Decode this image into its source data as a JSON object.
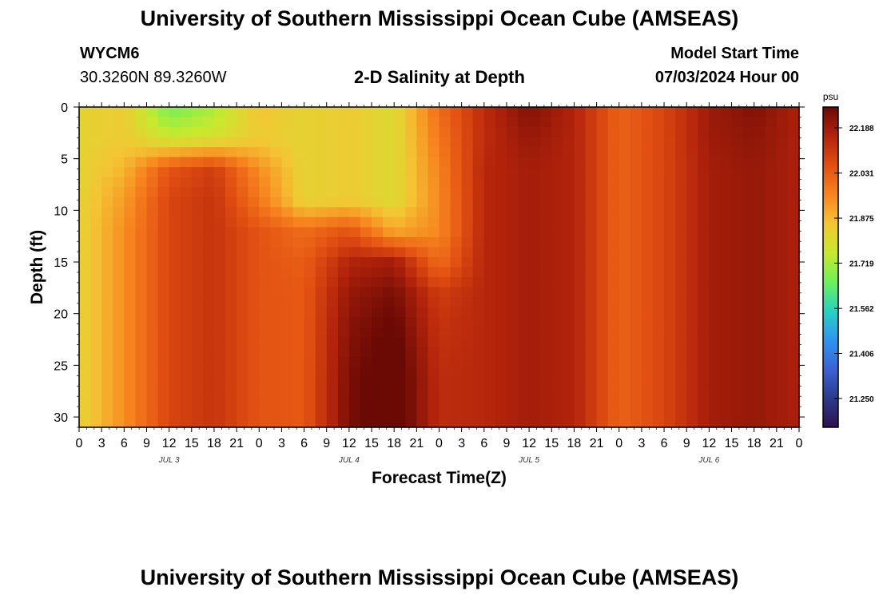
{
  "header": {
    "title": "University of Southern Mississippi Ocean Cube (AMSEAS)",
    "station": "WYCM6",
    "coords": "30.3260N  89.3260W",
    "subtitle": "2-D Salinity at Depth",
    "model_start_label": "Model Start Time",
    "model_start_value": "07/03/2024 Hour 00"
  },
  "footer": {
    "title": "University of Southern Mississippi Ocean Cube (AMSEAS)"
  },
  "chart_data": {
    "type": "heatmap",
    "xlabel": "Forecast Time(Z)",
    "ylabel": "Depth (ft)",
    "x_hours_range": [
      0,
      96
    ],
    "y_range": [
      0,
      31
    ],
    "x_tick_labels": [
      "0",
      "3",
      "6",
      "9",
      "12",
      "15",
      "18",
      "21",
      "0",
      "3",
      "6",
      "9",
      "12",
      "15",
      "18",
      "21",
      "0",
      "3",
      "6",
      "9",
      "12",
      "15",
      "18",
      "21",
      "0",
      "3",
      "6",
      "9",
      "12",
      "15",
      "18",
      "21",
      "0"
    ],
    "y_ticks": [
      0,
      5,
      10,
      15,
      20,
      25,
      30
    ],
    "day_labels": [
      {
        "hour": 12,
        "text": "JUL 3"
      },
      {
        "hour": 36,
        "text": "JUL 4"
      },
      {
        "hour": 60,
        "text": "JUL 5"
      },
      {
        "hour": 84,
        "text": "JUL 6"
      }
    ],
    "colorbar": {
      "unit": "psu",
      "min": 21.15,
      "max": 22.26,
      "ticks": [
        22.188,
        22.031,
        21.875,
        21.719,
        21.562,
        21.406,
        21.25
      ],
      "colors": [
        "#2e1150",
        "#2c3b8c",
        "#3a62d6",
        "#2f95f0",
        "#28d2c2",
        "#6ef05a",
        "#c8e92e",
        "#f4c534",
        "#f7831e",
        "#e24f12",
        "#b3230b",
        "#6b0a05"
      ]
    },
    "grid": {
      "x_hours": [
        0,
        6,
        12,
        18,
        24,
        30,
        36,
        42,
        48,
        54,
        60,
        66,
        72,
        78,
        84,
        90,
        96
      ],
      "depths_ft": [
        0,
        3,
        6,
        9,
        12,
        15,
        18,
        21,
        24,
        27,
        31
      ],
      "salinity": [
        [
          21.82,
          21.84,
          21.66,
          21.72,
          21.86,
          21.82,
          21.84,
          21.8,
          22.0,
          22.14,
          22.23,
          22.16,
          22.02,
          22.08,
          22.19,
          22.23,
          22.17
        ],
        [
          21.82,
          21.84,
          21.76,
          21.78,
          21.84,
          21.82,
          21.84,
          21.8,
          21.98,
          22.14,
          22.2,
          22.16,
          22.02,
          22.08,
          22.19,
          22.21,
          22.17
        ],
        [
          21.82,
          21.88,
          22.05,
          22.1,
          21.94,
          21.82,
          21.84,
          21.8,
          21.96,
          22.15,
          22.18,
          22.16,
          22.02,
          22.08,
          22.18,
          22.2,
          22.17
        ],
        [
          21.82,
          21.92,
          22.08,
          22.12,
          21.98,
          21.82,
          21.84,
          21.8,
          21.95,
          22.15,
          22.18,
          22.16,
          22.02,
          22.08,
          22.18,
          22.2,
          22.17
        ],
        [
          21.82,
          21.94,
          22.08,
          22.12,
          22.05,
          22.0,
          22.05,
          21.9,
          21.95,
          22.15,
          22.18,
          22.16,
          22.02,
          22.08,
          22.18,
          22.2,
          22.17
        ],
        [
          21.82,
          21.94,
          22.08,
          22.12,
          22.05,
          22.03,
          22.16,
          22.18,
          22.0,
          22.15,
          22.18,
          22.16,
          22.02,
          22.08,
          22.18,
          22.2,
          22.17
        ],
        [
          21.82,
          21.94,
          22.08,
          22.12,
          22.05,
          22.04,
          22.2,
          22.24,
          22.1,
          22.15,
          22.18,
          22.16,
          22.02,
          22.08,
          22.18,
          22.2,
          22.17
        ],
        [
          21.82,
          21.94,
          22.08,
          22.12,
          22.05,
          22.04,
          22.22,
          22.27,
          22.12,
          22.15,
          22.18,
          22.16,
          22.02,
          22.08,
          22.18,
          22.2,
          22.17
        ],
        [
          21.82,
          21.94,
          22.08,
          22.12,
          22.05,
          22.04,
          22.23,
          22.29,
          22.13,
          22.15,
          22.18,
          22.16,
          22.02,
          22.08,
          22.18,
          22.2,
          22.17
        ],
        [
          21.82,
          21.94,
          22.08,
          22.12,
          22.05,
          22.04,
          22.24,
          22.3,
          22.14,
          22.15,
          22.18,
          22.16,
          22.02,
          22.08,
          22.18,
          22.2,
          22.17
        ],
        [
          21.82,
          21.94,
          22.08,
          22.12,
          22.05,
          22.04,
          22.24,
          22.3,
          22.14,
          22.15,
          22.18,
          22.16,
          22.02,
          22.08,
          22.18,
          22.2,
          22.17
        ]
      ]
    }
  }
}
